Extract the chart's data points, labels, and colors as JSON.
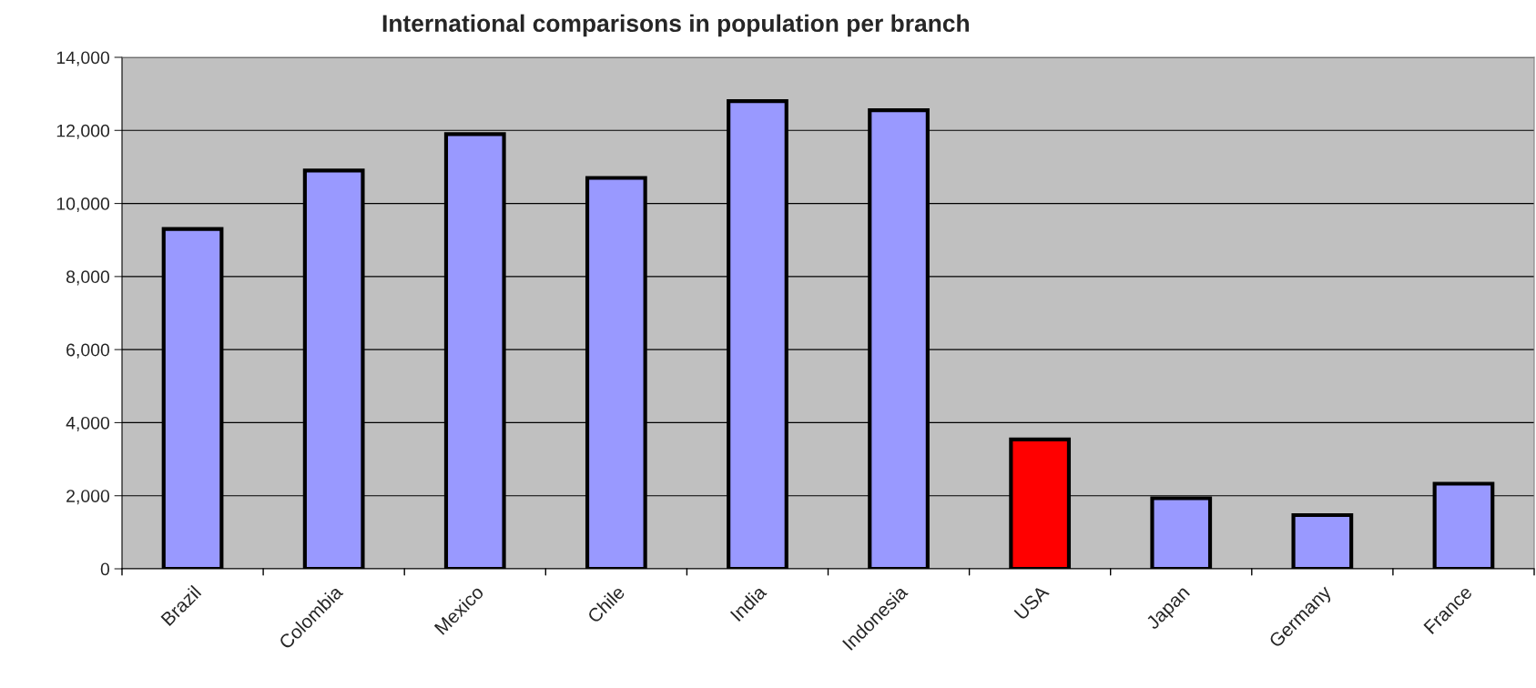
{
  "chart_data": {
    "type": "bar",
    "title": "International comparisons in population per branch",
    "categories": [
      "Brazil",
      "Colombia",
      "Mexico",
      "Chile",
      "India",
      "Indonesia",
      "USA",
      "Japan",
      "Germany",
      "France"
    ],
    "values": [
      9300,
      10900,
      11900,
      10700,
      12800,
      12550,
      3540,
      1930,
      1470,
      2330
    ],
    "colors": [
      "#9999ff",
      "#9999ff",
      "#9999ff",
      "#9999ff",
      "#9999ff",
      "#9999ff",
      "#ff0000",
      "#9999ff",
      "#9999ff",
      "#9999ff"
    ],
    "ylim": [
      0,
      14000
    ],
    "yticks": [
      {
        "value": 0,
        "label": "0"
      },
      {
        "value": 2000,
        "label": "2,000"
      },
      {
        "value": 4000,
        "label": "4,000"
      },
      {
        "value": 6000,
        "label": "6,000"
      },
      {
        "value": 8000,
        "label": "8,000"
      },
      {
        "value": 10000,
        "label": "10,000"
      },
      {
        "value": 12000,
        "label": "12,000"
      },
      {
        "value": 14000,
        "label": "14,000"
      }
    ],
    "grid": "y"
  }
}
